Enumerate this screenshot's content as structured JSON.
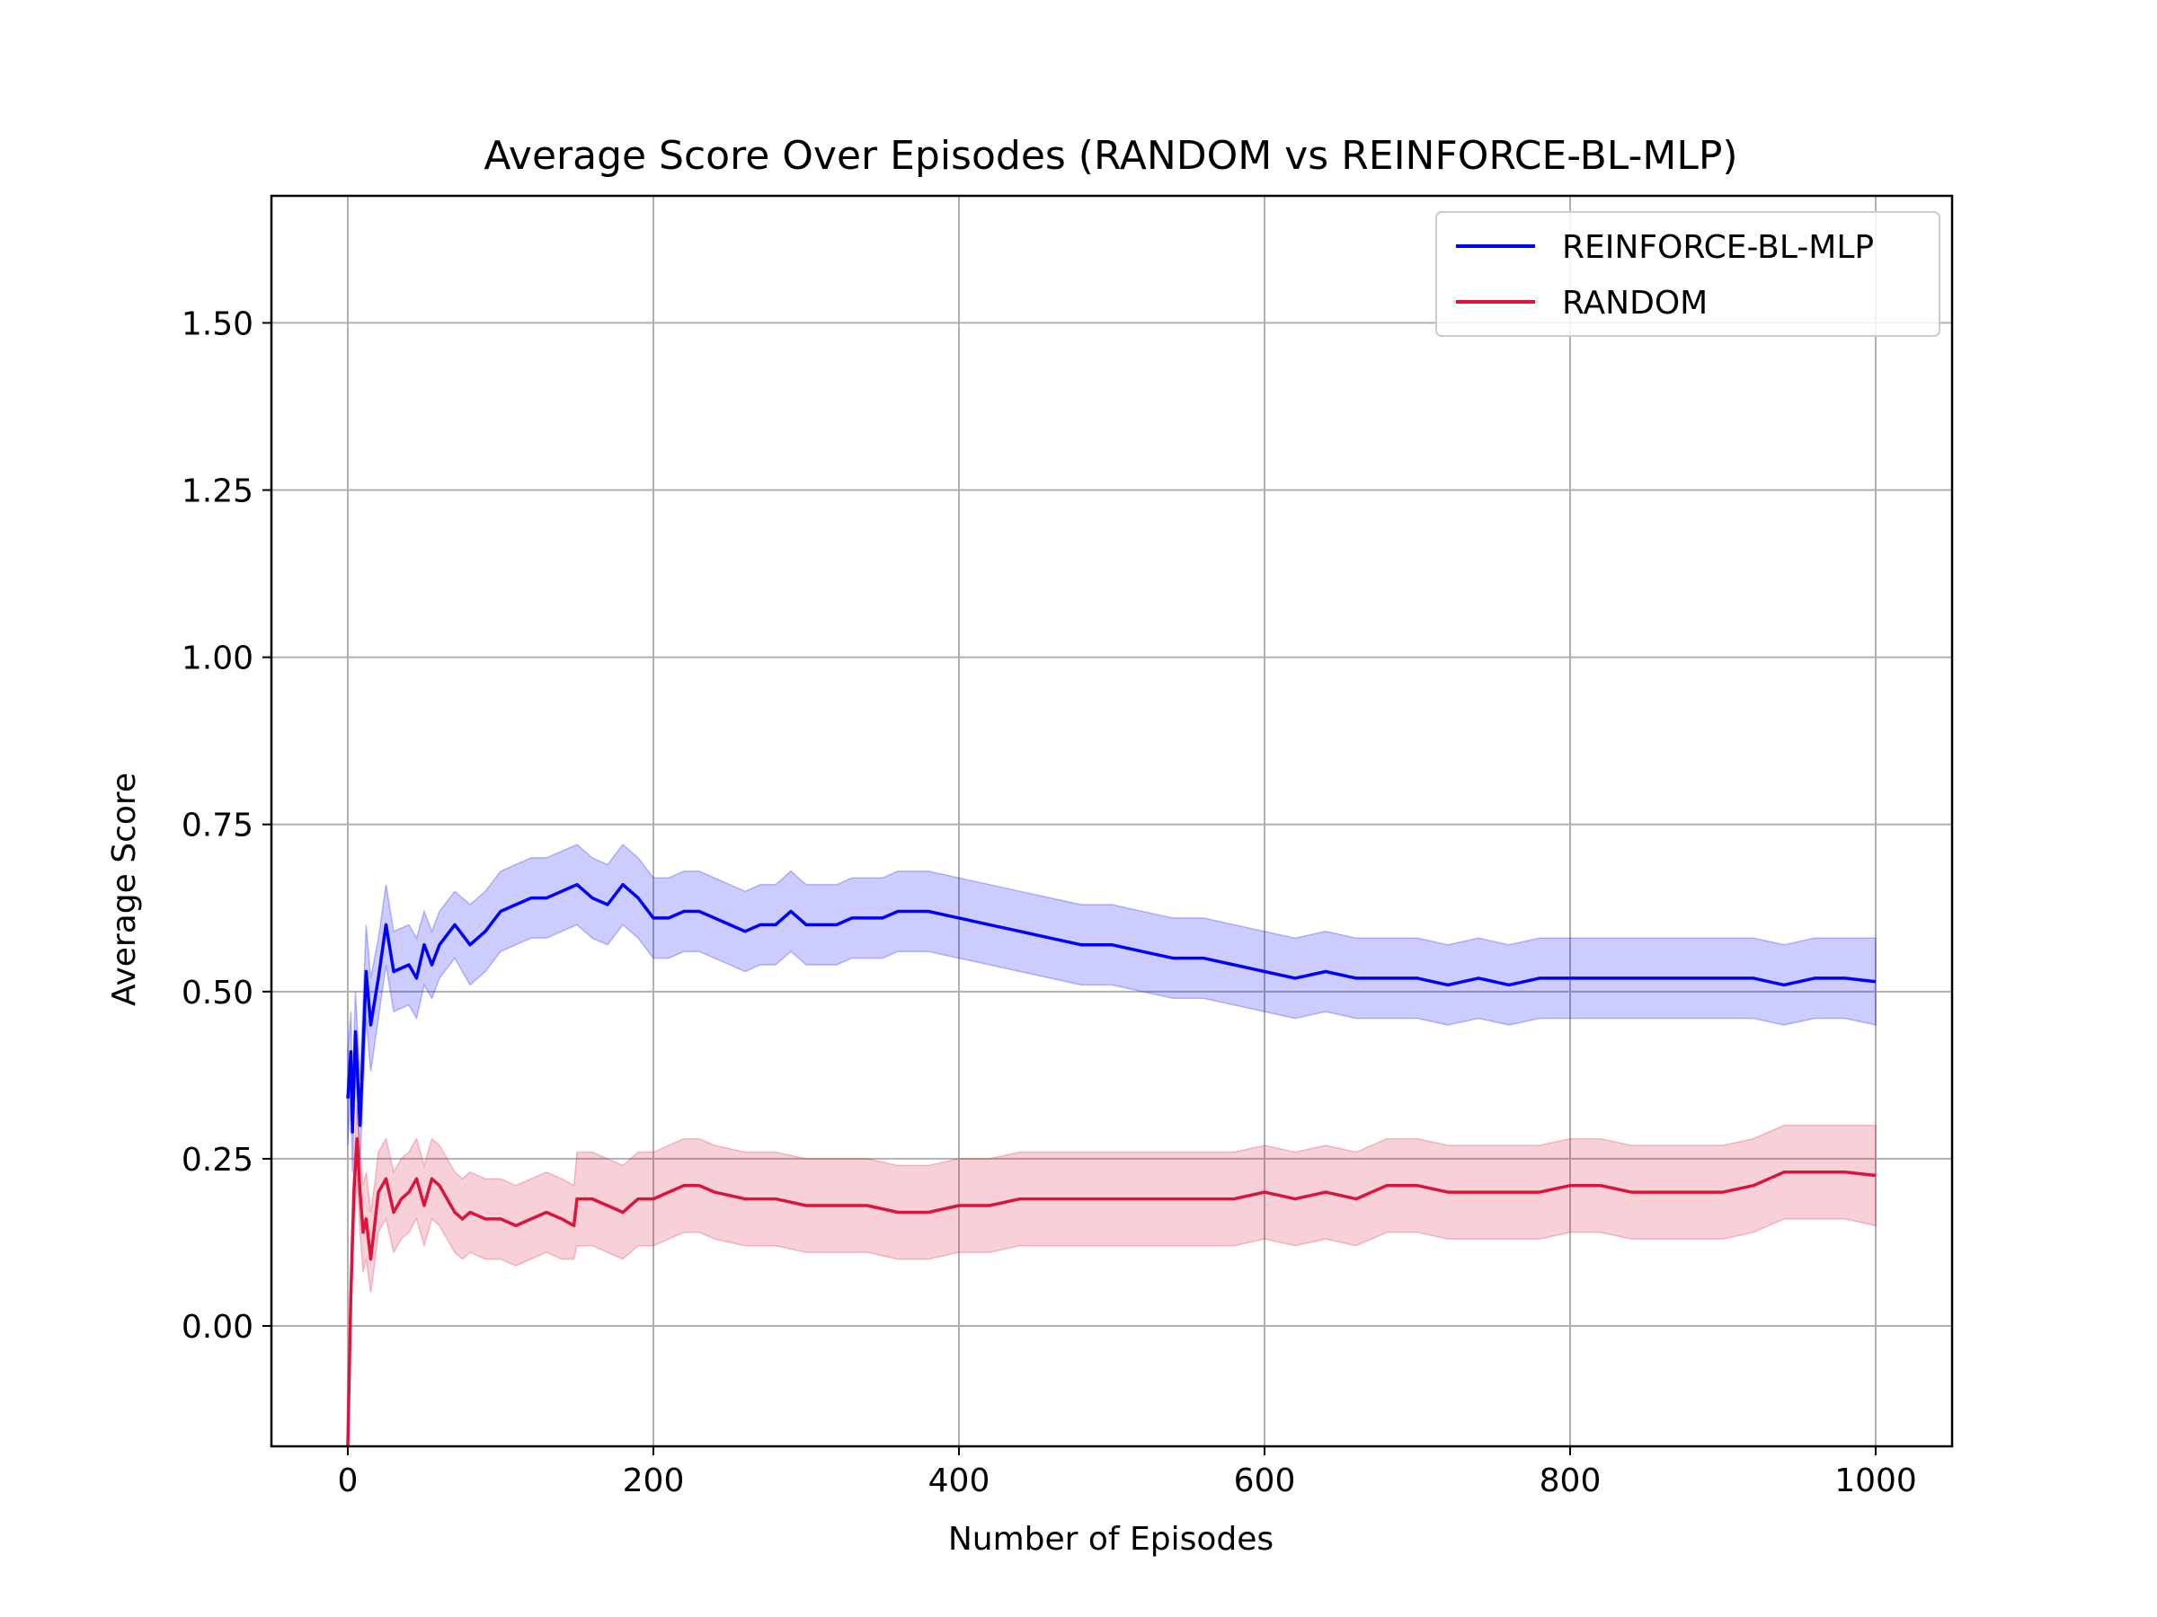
{
  "chart_data": {
    "type": "line",
    "title": "Average Score Over Episodes (RANDOM vs REINFORCE-BL-MLP)",
    "xlabel": "Number of Episodes",
    "ylabel": "Average Score",
    "xlim": [
      -50,
      1050
    ],
    "ylim": [
      -0.18,
      1.69
    ],
    "xticks": [
      0,
      200,
      400,
      600,
      800,
      1000
    ],
    "xtick_labels": [
      "0",
      "200",
      "400",
      "600",
      "800",
      "1000"
    ],
    "yticks": [
      0.0,
      0.25,
      0.5,
      0.75,
      1.0,
      1.25,
      1.5
    ],
    "ytick_labels": [
      "0.00",
      "0.25",
      "0.50",
      "0.75",
      "1.00",
      "1.25",
      "1.50"
    ],
    "grid": true,
    "legend_position": "top-right",
    "series": [
      {
        "name": "REINFORCE-BL-MLP",
        "color": "#0000ff",
        "band_color": "#0000ff",
        "x": [
          0,
          2,
          3,
          5,
          8,
          12,
          15,
          20,
          25,
          30,
          40,
          45,
          50,
          55,
          60,
          70,
          80,
          90,
          100,
          110,
          120,
          130,
          140,
          150,
          160,
          170,
          180,
          190,
          200,
          210,
          220,
          230,
          240,
          250,
          260,
          270,
          280,
          290,
          300,
          310,
          320,
          330,
          340,
          350,
          360,
          380,
          400,
          420,
          440,
          460,
          480,
          500,
          520,
          540,
          560,
          580,
          600,
          620,
          640,
          660,
          680,
          700,
          720,
          740,
          760,
          780,
          800,
          820,
          840,
          860,
          880,
          900,
          920,
          940,
          960,
          980,
          1000
        ],
        "y": [
          0.34,
          0.41,
          0.29,
          0.44,
          0.3,
          0.53,
          0.45,
          0.52,
          0.6,
          0.53,
          0.54,
          0.52,
          0.57,
          0.54,
          0.57,
          0.6,
          0.57,
          0.59,
          0.62,
          0.63,
          0.64,
          0.64,
          0.65,
          0.66,
          0.64,
          0.63,
          0.66,
          0.64,
          0.61,
          0.61,
          0.62,
          0.62,
          0.61,
          0.6,
          0.59,
          0.6,
          0.6,
          0.62,
          0.6,
          0.6,
          0.6,
          0.61,
          0.61,
          0.61,
          0.62,
          0.62,
          0.61,
          0.6,
          0.59,
          0.58,
          0.57,
          0.57,
          0.56,
          0.55,
          0.55,
          0.54,
          0.53,
          0.52,
          0.53,
          0.52,
          0.52,
          0.52,
          0.51,
          0.52,
          0.51,
          0.52,
          0.52,
          0.52,
          0.52,
          0.52,
          0.52,
          0.52,
          0.52,
          0.51,
          0.52,
          0.52,
          0.515
        ],
        "upper": [
          0.41,
          0.47,
          0.36,
          0.5,
          0.37,
          0.6,
          0.52,
          0.58,
          0.66,
          0.59,
          0.6,
          0.58,
          0.62,
          0.59,
          0.62,
          0.65,
          0.63,
          0.65,
          0.68,
          0.69,
          0.7,
          0.7,
          0.71,
          0.72,
          0.7,
          0.69,
          0.72,
          0.7,
          0.67,
          0.67,
          0.68,
          0.68,
          0.67,
          0.66,
          0.65,
          0.66,
          0.66,
          0.68,
          0.66,
          0.66,
          0.66,
          0.67,
          0.67,
          0.67,
          0.68,
          0.68,
          0.67,
          0.66,
          0.65,
          0.64,
          0.63,
          0.63,
          0.62,
          0.61,
          0.61,
          0.6,
          0.59,
          0.58,
          0.59,
          0.58,
          0.58,
          0.58,
          0.57,
          0.58,
          0.57,
          0.58,
          0.58,
          0.58,
          0.58,
          0.58,
          0.58,
          0.58,
          0.58,
          0.57,
          0.58,
          0.58,
          0.58
        ],
        "lower": [
          0.27,
          0.35,
          0.23,
          0.38,
          0.24,
          0.46,
          0.38,
          0.46,
          0.54,
          0.47,
          0.48,
          0.46,
          0.51,
          0.49,
          0.52,
          0.55,
          0.51,
          0.53,
          0.56,
          0.57,
          0.58,
          0.58,
          0.59,
          0.6,
          0.58,
          0.57,
          0.6,
          0.58,
          0.55,
          0.55,
          0.56,
          0.56,
          0.55,
          0.54,
          0.53,
          0.54,
          0.54,
          0.56,
          0.54,
          0.54,
          0.54,
          0.55,
          0.55,
          0.55,
          0.56,
          0.56,
          0.55,
          0.54,
          0.53,
          0.52,
          0.51,
          0.51,
          0.5,
          0.49,
          0.49,
          0.48,
          0.47,
          0.46,
          0.47,
          0.46,
          0.46,
          0.46,
          0.45,
          0.46,
          0.45,
          0.46,
          0.46,
          0.46,
          0.46,
          0.46,
          0.46,
          0.46,
          0.46,
          0.45,
          0.46,
          0.46,
          0.45
        ]
      },
      {
        "name": "RANDOM",
        "color": "#dc143c",
        "band_color": "#dc143c",
        "x": [
          0,
          2,
          4,
          6,
          8,
          10,
          12,
          15,
          18,
          20,
          25,
          30,
          35,
          40,
          45,
          50,
          55,
          60,
          65,
          70,
          75,
          80,
          90,
          100,
          110,
          120,
          130,
          140,
          148,
          150,
          160,
          170,
          180,
          190,
          200,
          210,
          220,
          230,
          240,
          260,
          280,
          300,
          320,
          340,
          360,
          380,
          400,
          420,
          440,
          460,
          480,
          500,
          520,
          540,
          560,
          580,
          600,
          620,
          640,
          660,
          680,
          700,
          720,
          740,
          760,
          780,
          800,
          820,
          840,
          860,
          880,
          900,
          920,
          940,
          960,
          980,
          1000
        ],
        "y": [
          -0.18,
          0.05,
          0.2,
          0.28,
          0.2,
          0.14,
          0.16,
          0.1,
          0.16,
          0.2,
          0.22,
          0.17,
          0.19,
          0.2,
          0.22,
          0.18,
          0.22,
          0.21,
          0.19,
          0.17,
          0.16,
          0.17,
          0.16,
          0.16,
          0.15,
          0.16,
          0.17,
          0.16,
          0.15,
          0.19,
          0.19,
          0.18,
          0.17,
          0.19,
          0.19,
          0.2,
          0.21,
          0.21,
          0.2,
          0.19,
          0.19,
          0.18,
          0.18,
          0.18,
          0.17,
          0.17,
          0.18,
          0.18,
          0.19,
          0.19,
          0.19,
          0.19,
          0.19,
          0.19,
          0.19,
          0.19,
          0.2,
          0.19,
          0.2,
          0.19,
          0.21,
          0.21,
          0.2,
          0.2,
          0.2,
          0.2,
          0.21,
          0.21,
          0.2,
          0.2,
          0.2,
          0.2,
          0.21,
          0.23,
          0.23,
          0.23,
          0.225
        ],
        "upper": [
          -0.18,
          0.1,
          0.25,
          0.33,
          0.26,
          0.21,
          0.23,
          0.17,
          0.22,
          0.26,
          0.28,
          0.23,
          0.25,
          0.26,
          0.28,
          0.24,
          0.28,
          0.27,
          0.25,
          0.23,
          0.22,
          0.23,
          0.22,
          0.22,
          0.21,
          0.22,
          0.23,
          0.22,
          0.21,
          0.26,
          0.26,
          0.25,
          0.24,
          0.26,
          0.26,
          0.27,
          0.28,
          0.28,
          0.27,
          0.26,
          0.26,
          0.25,
          0.25,
          0.25,
          0.24,
          0.24,
          0.25,
          0.25,
          0.26,
          0.26,
          0.26,
          0.26,
          0.26,
          0.26,
          0.26,
          0.26,
          0.27,
          0.26,
          0.27,
          0.26,
          0.28,
          0.28,
          0.27,
          0.27,
          0.27,
          0.27,
          0.28,
          0.28,
          0.27,
          0.27,
          0.27,
          0.27,
          0.28,
          0.3,
          0.3,
          0.3,
          0.3
        ],
        "lower": [
          -0.18,
          0.0,
          0.14,
          0.22,
          0.14,
          0.08,
          0.1,
          0.05,
          0.1,
          0.14,
          0.16,
          0.11,
          0.13,
          0.14,
          0.16,
          0.12,
          0.16,
          0.15,
          0.13,
          0.11,
          0.1,
          0.11,
          0.1,
          0.1,
          0.09,
          0.1,
          0.11,
          0.1,
          0.1,
          0.12,
          0.12,
          0.11,
          0.1,
          0.12,
          0.12,
          0.13,
          0.14,
          0.14,
          0.13,
          0.12,
          0.12,
          0.11,
          0.11,
          0.11,
          0.1,
          0.1,
          0.11,
          0.11,
          0.12,
          0.12,
          0.12,
          0.12,
          0.12,
          0.12,
          0.12,
          0.12,
          0.13,
          0.12,
          0.13,
          0.12,
          0.14,
          0.14,
          0.13,
          0.13,
          0.13,
          0.13,
          0.14,
          0.14,
          0.13,
          0.13,
          0.13,
          0.13,
          0.14,
          0.16,
          0.16,
          0.16,
          0.15
        ]
      }
    ]
  }
}
